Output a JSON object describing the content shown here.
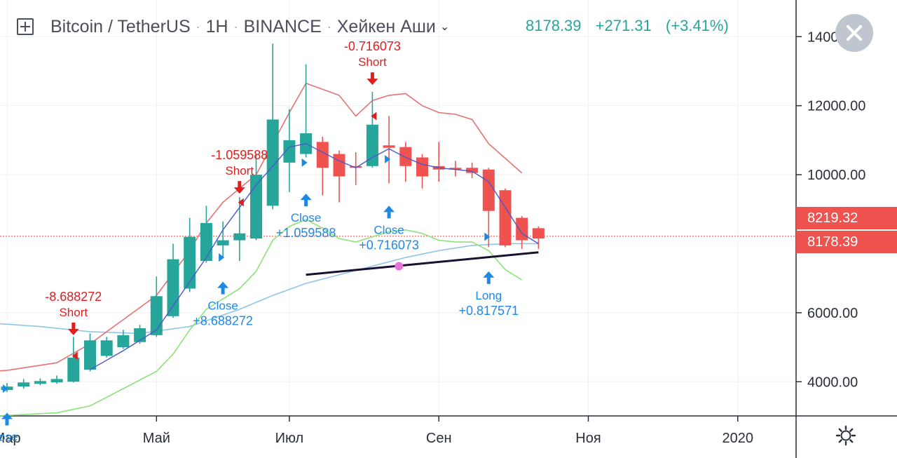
{
  "header": {
    "symbol": "Bitcoin / TetherUS",
    "interval": "1H",
    "exchange": "BINANCE",
    "chart_style": "Хейкен Аши",
    "sep": "·"
  },
  "quote": {
    "last": "8178.39",
    "change": "+271.31",
    "change_pct": "(+3.41%)"
  },
  "price_tags": {
    "upper": "8219.32",
    "lower": "8178.39"
  },
  "colors": {
    "up": "#26a69a",
    "down": "#ef5350",
    "signal_red": "#e01e1e",
    "signal_blue": "#1e88e5",
    "ma_red": "#e57373",
    "ma_blue": "#4b57c9",
    "ma_lightblue": "#8ec6e6",
    "ma_green": "#8de27a",
    "trendline": "#1a1033",
    "marker": "#e673d8"
  },
  "chart_data": {
    "type": "candlestick",
    "title": "Bitcoin / TetherUS · 1H · BINANCE · Хейкен Аши",
    "x_ticks": [
      {
        "label": "Мар",
        "i": 0
      },
      {
        "label": "Май",
        "i": 9
      },
      {
        "label": "Июл",
        "i": 17
      },
      {
        "label": "Сен",
        "i": 26
      },
      {
        "label": "Ноя",
        "i": 35
      },
      {
        "label": "2020",
        "i": 44
      }
    ],
    "y_ticks": [
      "4000.00",
      "6000.00",
      "10000.00",
      "12000.00",
      "14000.00"
    ],
    "ylim": [
      2400,
      14400
    ],
    "candles": [
      {
        "i": 0,
        "o": 3760,
        "c": 3860,
        "h": 3960,
        "l": 3700
      },
      {
        "i": 1,
        "o": 3860,
        "c": 3980,
        "h": 4080,
        "l": 3800
      },
      {
        "i": 2,
        "o": 3940,
        "c": 4020,
        "h": 4100,
        "l": 3900
      },
      {
        "i": 3,
        "o": 3980,
        "c": 4080,
        "h": 4180,
        "l": 3940
      },
      {
        "i": 4,
        "o": 4000,
        "c": 4700,
        "h": 5300,
        "l": 3980
      },
      {
        "i": 5,
        "o": 4350,
        "c": 5200,
        "h": 5400,
        "l": 4300
      },
      {
        "i": 6,
        "o": 4750,
        "c": 5200,
        "h": 5300,
        "l": 4700
      },
      {
        "i": 7,
        "o": 5000,
        "c": 5350,
        "h": 5500,
        "l": 4950
      },
      {
        "i": 8,
        "o": 5150,
        "c": 5550,
        "h": 5650,
        "l": 5100
      },
      {
        "i": 9,
        "o": 5350,
        "c": 6480,
        "h": 7050,
        "l": 5300
      },
      {
        "i": 10,
        "o": 5900,
        "c": 7550,
        "h": 8000,
        "l": 5850
      },
      {
        "i": 11,
        "o": 6700,
        "c": 8200,
        "h": 8750,
        "l": 6600
      },
      {
        "i": 12,
        "o": 7500,
        "c": 8600,
        "h": 9100,
        "l": 7450
      },
      {
        "i": 13,
        "o": 7950,
        "c": 8100,
        "h": 8650,
        "l": 7600
      },
      {
        "i": 14,
        "o": 8100,
        "c": 8300,
        "h": 9350,
        "l": 7500
      },
      {
        "i": 15,
        "o": 8150,
        "c": 10000,
        "h": 10600,
        "l": 8100
      },
      {
        "i": 16,
        "o": 9100,
        "c": 11600,
        "h": 13800,
        "l": 9000
      },
      {
        "i": 17,
        "o": 10350,
        "c": 11000,
        "h": 11900,
        "l": 9500
      },
      {
        "i": 18,
        "o": 10600,
        "c": 11200,
        "h": 13200,
        "l": 10500
      },
      {
        "i": 19,
        "o": 10950,
        "c": 10200,
        "h": 11100,
        "l": 9400
      },
      {
        "i": 20,
        "o": 10600,
        "c": 9950,
        "h": 10700,
        "l": 9200
      },
      {
        "i": 21,
        "o": 10250,
        "c": 10200,
        "h": 10650,
        "l": 9700
      },
      {
        "i": 22,
        "o": 10250,
        "c": 11450,
        "h": 12400,
        "l": 10200
      },
      {
        "i": 23,
        "o": 10850,
        "c": 10780,
        "h": 11700,
        "l": 9750
      },
      {
        "i": 24,
        "o": 10800,
        "c": 10250,
        "h": 10950,
        "l": 9800
      },
      {
        "i": 25,
        "o": 10500,
        "c": 9950,
        "h": 10600,
        "l": 9600
      },
      {
        "i": 26,
        "o": 10250,
        "c": 10150,
        "h": 10950,
        "l": 9800
      },
      {
        "i": 27,
        "o": 10200,
        "c": 10150,
        "h": 10400,
        "l": 9950
      },
      {
        "i": 28,
        "o": 10200,
        "c": 10050,
        "h": 10350,
        "l": 9900
      },
      {
        "i": 29,
        "o": 10150,
        "c": 8950,
        "h": 10200,
        "l": 7900
      },
      {
        "i": 30,
        "o": 9550,
        "c": 7950,
        "h": 9600,
        "l": 7900
      },
      {
        "i": 31,
        "o": 8750,
        "c": 8100,
        "h": 8800,
        "l": 7850
      },
      {
        "i": 32,
        "o": 8450,
        "c": 8150,
        "h": 8500,
        "l": 7850
      }
    ],
    "ma_red": [
      [
        -1,
        4300
      ],
      [
        0,
        4330
      ],
      [
        3,
        4550
      ],
      [
        5,
        5100
      ],
      [
        7,
        5800
      ],
      [
        9,
        6500
      ],
      [
        11,
        7800
      ],
      [
        12,
        8600
      ],
      [
        13,
        9200
      ],
      [
        15,
        10000
      ],
      [
        17,
        11800
      ],
      [
        18,
        12650
      ],
      [
        20,
        12300
      ],
      [
        21,
        11700
      ],
      [
        22,
        12150
      ],
      [
        23,
        12300
      ],
      [
        24,
        12350
      ],
      [
        25,
        12000
      ],
      [
        26,
        11800
      ],
      [
        27,
        11750
      ],
      [
        28,
        11600
      ],
      [
        29,
        10900
      ],
      [
        31,
        10050
      ]
    ],
    "ma_blue": [
      [
        5,
        4350
      ],
      [
        7,
        4900
      ],
      [
        9,
        5500
      ],
      [
        11,
        6900
      ],
      [
        12,
        7600
      ],
      [
        13,
        8400
      ],
      [
        15,
        9700
      ],
      [
        17,
        10800
      ],
      [
        18,
        10900
      ],
      [
        20,
        10400
      ],
      [
        21,
        10200
      ],
      [
        22,
        10500
      ],
      [
        23,
        10750
      ],
      [
        24,
        10500
      ],
      [
        25,
        10300
      ],
      [
        26,
        10200
      ],
      [
        27,
        10150
      ],
      [
        28,
        10100
      ],
      [
        29,
        9800
      ],
      [
        31,
        8300
      ],
      [
        32,
        8000
      ]
    ],
    "ma_lightblue": [
      [
        -1,
        5700
      ],
      [
        2,
        5600
      ],
      [
        5,
        5450
      ],
      [
        8,
        5400
      ],
      [
        11,
        5600
      ],
      [
        14,
        6100
      ],
      [
        16,
        6500
      ],
      [
        18,
        6850
      ],
      [
        20,
        7100
      ],
      [
        22,
        7350
      ],
      [
        24,
        7600
      ],
      [
        26,
        7800
      ],
      [
        28,
        7950
      ],
      [
        30,
        8000
      ],
      [
        32,
        8000
      ]
    ],
    "ma_green": [
      [
        -1,
        3000
      ],
      [
        3,
        3100
      ],
      [
        5,
        3300
      ],
      [
        7,
        3800
      ],
      [
        9,
        4300
      ],
      [
        10,
        4800
      ],
      [
        11,
        5500
      ],
      [
        12,
        6100
      ],
      [
        14,
        6700
      ],
      [
        15,
        7200
      ],
      [
        16,
        8100
      ],
      [
        17,
        8500
      ],
      [
        18,
        8700
      ],
      [
        19,
        8450
      ],
      [
        20,
        8150
      ],
      [
        21,
        8050
      ],
      [
        23,
        8350
      ],
      [
        24,
        8400
      ],
      [
        25,
        8300
      ],
      [
        26,
        8100
      ],
      [
        27,
        8050
      ],
      [
        28,
        8050
      ],
      [
        29,
        7800
      ],
      [
        30,
        7250
      ],
      [
        31,
        6950
      ]
    ],
    "trendline": [
      [
        18,
        7100
      ],
      [
        32,
        7750
      ]
    ],
    "marker_point": [
      23.6,
      7350
    ],
    "signals": [
      {
        "i": 0,
        "side": "buy",
        "text": "lose",
        "value": "",
        "arrow_y": 3100
      },
      {
        "i": 4,
        "side": "sell",
        "text": "Short",
        "value": "-8.688272",
        "arrow_y": 5350
      },
      {
        "i": 13,
        "side": "buy",
        "text": "Close",
        "value": "+8.688272",
        "arrow_y": 6900
      },
      {
        "i": 14,
        "side": "sell",
        "text": "Short",
        "value": "-1.059588",
        "arrow_y": 9450
      },
      {
        "i": 18,
        "side": "buy",
        "text": "Close",
        "value": "+1.059588",
        "arrow_y": 9450
      },
      {
        "i": 22,
        "side": "sell",
        "text": "Short",
        "value": "-0.716073",
        "arrow_y": 12600
      },
      {
        "i": 23,
        "side": "buy",
        "text": "Close",
        "value": "+0.716073",
        "arrow_y": 9100
      },
      {
        "i": 29,
        "side": "buy",
        "text": "Long",
        "value": "+0.817571",
        "arrow_y": 7200
      }
    ],
    "entry_marks": [
      {
        "i": 0,
        "y": 3800,
        "dir": "right",
        "side": "buy"
      },
      {
        "i": 4,
        "y": 4750,
        "dir": "left",
        "side": "sell"
      },
      {
        "i": 13,
        "y": 7600,
        "dir": "right",
        "side": "buy"
      },
      {
        "i": 14,
        "y": 9200,
        "dir": "left",
        "side": "sell"
      },
      {
        "i": 18,
        "y": 10350,
        "dir": "right",
        "side": "buy"
      },
      {
        "i": 22,
        "y": 11700,
        "dir": "left",
        "side": "sell"
      },
      {
        "i": 23,
        "y": 10450,
        "dir": "right",
        "side": "buy"
      },
      {
        "i": 29,
        "y": 8200,
        "dir": "right",
        "side": "buy"
      }
    ],
    "price_lines": [
      8219.32,
      8178.39
    ],
    "grid": true,
    "legend": "none"
  }
}
